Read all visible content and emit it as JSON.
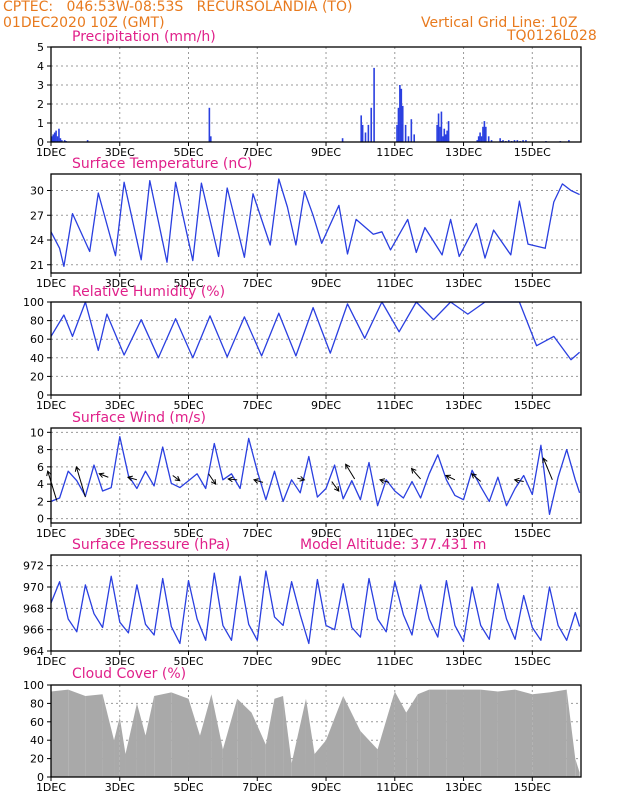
{
  "header": {
    "line1": "CPTEC:   046:53W-08:53S   RECURSOLANDIA (TO)",
    "line2": "01DEC2020 10Z (GMT)",
    "grid_note": "Vertical Grid Line: 10Z",
    "model_code": "TQ0126L028"
  },
  "colors": {
    "header": "#e87a1e",
    "panel_title": "#e0208a",
    "series": "#2a3fe0",
    "cloud": "#a9a9a9",
    "grid": "#9a9a9a"
  },
  "chart_data": [
    {
      "type": "bar",
      "title": "Precipitation (mm/h)",
      "ylim": [
        0,
        5
      ],
      "yticks": [
        "0",
        "1",
        "2",
        "3",
        "4",
        "5"
      ],
      "x_ticks": [
        "1DEC",
        "3DEC",
        "5DEC",
        "7DEC",
        "9DEC",
        "11DEC",
        "13DEC",
        "15DEC"
      ],
      "hours": [
        0,
        1,
        2,
        3,
        4,
        5,
        6,
        7,
        9,
        10,
        25,
        110,
        111,
        203,
        216,
        217,
        219,
        221,
        223,
        225,
        241,
        242,
        243,
        244,
        245,
        247,
        249,
        251,
        253,
        269,
        270,
        271,
        272,
        273,
        274,
        275,
        276,
        277,
        297,
        298,
        299,
        300,
        301,
        302,
        303,
        305,
        307,
        313,
        314,
        315,
        317,
        319,
        321,
        323,
        325,
        327,
        329,
        331,
        345,
        355,
        361
      ],
      "values": [
        0.3,
        0.4,
        0.5,
        0.6,
        0.3,
        0.7,
        0.2,
        0.1,
        0.1,
        0.05,
        0.1,
        1.8,
        0.3,
        0.2,
        1.4,
        0.9,
        0.5,
        0.9,
        1.8,
        3.9,
        0.9,
        1.8,
        3.0,
        2.8,
        1.9,
        0.9,
        0.3,
        1.2,
        0.4,
        0.9,
        1.5,
        0.8,
        1.6,
        0.3,
        0.7,
        0.4,
        0.6,
        1.1,
        0.1,
        0.3,
        0.5,
        0.3,
        0.8,
        1.1,
        0.8,
        0.3,
        0.1,
        0.2,
        0.05,
        0.1,
        0.05,
        0.1,
        0.05,
        0.1,
        0.1,
        0.05,
        0.1,
        0.1,
        0.05,
        0.05,
        0.1
      ]
    },
    {
      "type": "line",
      "title": "Surface Temperature (nC)",
      "ylim": [
        20,
        32
      ],
      "yticks": [
        "21",
        "24",
        "27",
        "30"
      ],
      "x_ticks": [
        "1DEC",
        "3DEC",
        "5DEC",
        "7DEC",
        "9DEC",
        "11DEC",
        "13DEC",
        "15DEC"
      ],
      "hours": [
        0,
        6,
        9,
        15,
        27,
        33,
        45,
        51,
        63,
        69,
        81,
        87,
        99,
        105,
        117,
        123,
        135,
        141,
        153,
        159,
        165,
        171,
        177,
        183,
        189,
        201,
        207,
        213,
        225,
        231,
        237,
        249,
        255,
        261,
        273,
        279,
        285,
        297,
        303,
        309,
        321,
        327,
        333,
        345,
        351,
        357,
        363,
        369
      ],
      "values": [
        25.0,
        23.0,
        20.8,
        27.2,
        22.6,
        29.7,
        22.1,
        31.0,
        21.6,
        31.2,
        21.3,
        31.0,
        21.5,
        30.9,
        22.0,
        30.3,
        21.9,
        29.6,
        23.4,
        31.4,
        28.0,
        23.4,
        29.9,
        27.0,
        23.6,
        28.2,
        22.3,
        26.5,
        24.7,
        25.0,
        22.8,
        26.5,
        22.5,
        25.5,
        22.2,
        26.5,
        22.0,
        26.0,
        21.8,
        25.2,
        22.2,
        28.7,
        23.5,
        23.0,
        28.6,
        30.8,
        30.0,
        29.5
      ]
    },
    {
      "type": "line",
      "title": "Relative Humidity (%)",
      "ylim": [
        0,
        100
      ],
      "yticks": [
        "0",
        "20",
        "40",
        "60",
        "80",
        "100"
      ],
      "x_ticks": [
        "1DEC",
        "3DEC",
        "5DEC",
        "7DEC",
        "9DEC",
        "11DEC",
        "13DEC",
        "15DEC"
      ],
      "hours": [
        0,
        9,
        15,
        24,
        33,
        39,
        51,
        63,
        75,
        87,
        99,
        111,
        123,
        135,
        147,
        159,
        171,
        183,
        195,
        207,
        219,
        231,
        243,
        255,
        267,
        279,
        291,
        303,
        315,
        327,
        339,
        351,
        363,
        369
      ],
      "values": [
        63,
        86,
        63,
        100,
        48,
        87,
        43,
        81,
        40,
        82,
        40,
        85,
        41,
        84,
        42,
        88,
        42,
        94,
        45,
        98,
        61,
        100,
        68,
        100,
        81,
        100,
        87,
        100,
        100,
        100,
        53,
        63,
        38,
        46
      ]
    },
    {
      "type": "line",
      "title": "Surface Wind (m/s)",
      "ylim": [
        -0.5,
        10.5
      ],
      "yticks": [
        "0",
        "2",
        "4",
        "6",
        "8",
        "10"
      ],
      "x_ticks": [
        "1DEC",
        "3DEC",
        "5DEC",
        "7DEC",
        "9DEC",
        "11DEC",
        "13DEC",
        "15DEC"
      ],
      "hours": [
        0,
        6,
        12,
        18,
        24,
        30,
        36,
        42,
        48,
        54,
        60,
        66,
        72,
        78,
        84,
        90,
        96,
        102,
        108,
        114,
        120,
        126,
        132,
        138,
        144,
        150,
        156,
        162,
        168,
        174,
        180,
        186,
        192,
        198,
        204,
        210,
        216,
        222,
        228,
        234,
        240,
        246,
        252,
        258,
        264,
        270,
        276,
        282,
        288,
        294,
        300,
        306,
        312,
        318,
        324,
        330,
        336,
        342,
        348,
        354,
        360,
        366,
        369
      ],
      "values": [
        2.0,
        2.4,
        5.5,
        4.4,
        2.6,
        6.2,
        3.2,
        3.6,
        9.5,
        5.0,
        3.5,
        5.5,
        3.8,
        8.3,
        4.1,
        3.6,
        4.4,
        5.2,
        3.5,
        8.7,
        4.5,
        5.2,
        3.5,
        9.3,
        5.5,
        2.2,
        5.5,
        2.0,
        4.5,
        3.0,
        7.2,
        2.5,
        3.5,
        6.2,
        2.3,
        4.4,
        2.2,
        6.5,
        1.5,
        4.5,
        3.2,
        2.4,
        4.3,
        2.4,
        5.2,
        7.4,
        4.5,
        2.7,
        2.2,
        5.6,
        3.7,
        2.0,
        4.8,
        1.5,
        3.5,
        5.0,
        2.8,
        8.5,
        0.5,
        4.8,
        8.0,
        4.5,
        3.0
      ],
      "arrows": [
        [
          4,
          2.1,
          5.5
        ],
        [
          24,
          2.5,
          6.0
        ],
        [
          40,
          4.8,
          5.2
        ],
        [
          60,
          4.5,
          4.8
        ],
        [
          85,
          5.0,
          4.4
        ],
        [
          110,
          5.2,
          4.0
        ],
        [
          130,
          4.5,
          4.6
        ],
        [
          148,
          4.2,
          4.5
        ],
        [
          172,
          4.7,
          4.5
        ],
        [
          196,
          4.3,
          3.2
        ],
        [
          212,
          4.6,
          6.3
        ],
        [
          236,
          4.2,
          4.5
        ],
        [
          258,
          4.6,
          5.8
        ],
        [
          282,
          4.5,
          5.0
        ],
        [
          300,
          4.3,
          5.2
        ],
        [
          330,
          4.3,
          4.5
        ],
        [
          350,
          4.5,
          7.0
        ]
      ]
    },
    {
      "type": "line",
      "title": "Surface Pressure (hPa)",
      "subtitle": "Model Altitude: 377.431 m",
      "ylim": [
        964,
        973
      ],
      "yticks": [
        "964",
        "966",
        "968",
        "970",
        "972"
      ],
      "x_ticks": [
        "1DEC",
        "3DEC",
        "5DEC",
        "7DEC",
        "9DEC",
        "11DEC",
        "13DEC",
        "15DEC"
      ],
      "hours": [
        0,
        6,
        12,
        18,
        24,
        30,
        36,
        42,
        48,
        54,
        60,
        66,
        72,
        78,
        84,
        90,
        96,
        102,
        108,
        114,
        120,
        126,
        132,
        138,
        144,
        150,
        156,
        162,
        168,
        174,
        180,
        186,
        192,
        198,
        204,
        210,
        216,
        222,
        228,
        234,
        240,
        246,
        252,
        258,
        264,
        270,
        276,
        282,
        288,
        294,
        300,
        306,
        312,
        318,
        324,
        330,
        336,
        342,
        348,
        354,
        360,
        366,
        369
      ],
      "values": [
        968.5,
        970.5,
        967.0,
        965.8,
        970.2,
        967.5,
        966.2,
        971.0,
        966.7,
        965.7,
        970.2,
        966.5,
        965.5,
        970.8,
        966.3,
        964.7,
        970.6,
        967.0,
        965.0,
        971.3,
        966.4,
        965.0,
        971.0,
        966.5,
        965.0,
        971.5,
        967.2,
        966.4,
        970.5,
        967.4,
        964.7,
        970.7,
        966.4,
        966.0,
        970.3,
        966.2,
        965.3,
        970.8,
        967.0,
        965.8,
        970.5,
        967.4,
        965.5,
        970.2,
        967.0,
        965.3,
        970.6,
        966.4,
        964.9,
        970.0,
        966.4,
        965.1,
        970.3,
        967.0,
        965.1,
        969.2,
        966.2,
        965.0,
        970.0,
        966.4,
        965.0,
        967.6,
        966.3
      ]
    },
    {
      "type": "area",
      "title": "Cloud Cover (%)",
      "ylim": [
        0,
        100
      ],
      "yticks": [
        "0",
        "20",
        "40",
        "60",
        "80",
        "100"
      ],
      "x_ticks": [
        "1DEC",
        "3DEC",
        "5DEC",
        "7DEC",
        "9DEC",
        "11DEC",
        "13DEC",
        "15DEC"
      ],
      "hours": [
        0,
        12,
        24,
        36,
        44,
        48,
        52,
        60,
        66,
        72,
        84,
        96,
        104,
        112,
        120,
        130,
        140,
        150,
        156,
        162,
        168,
        178,
        184,
        192,
        204,
        216,
        228,
        240,
        248,
        256,
        264,
        276,
        288,
        300,
        312,
        324,
        336,
        348,
        360,
        366,
        369
      ],
      "values": [
        93,
        95,
        88,
        90,
        40,
        65,
        25,
        80,
        45,
        88,
        92,
        85,
        45,
        90,
        30,
        85,
        70,
        35,
        85,
        88,
        15,
        85,
        25,
        40,
        88,
        50,
        30,
        93,
        70,
        90,
        95,
        95,
        95,
        95,
        93,
        95,
        90,
        92,
        95,
        20,
        5
      ]
    }
  ]
}
